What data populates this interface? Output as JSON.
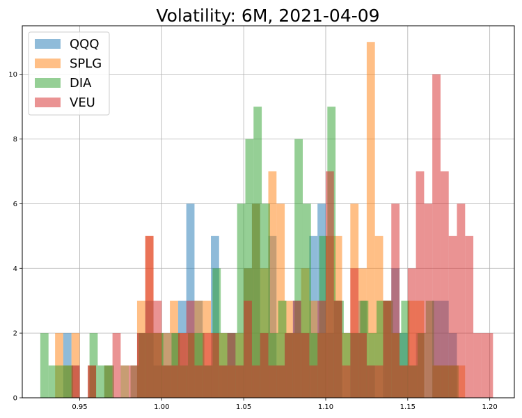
{
  "chart_data": {
    "type": "bar",
    "title": "Volatility: 6M, 2021-04-09",
    "xlabel": "",
    "ylabel": "",
    "xlim": [
      0.915,
      1.215
    ],
    "ylim": [
      0,
      11.5
    ],
    "x_ticks": [
      "0.95",
      "1.00",
      "1.05",
      "1.10",
      "1.15",
      "1.20"
    ],
    "x_tick_values": [
      0.95,
      1.0,
      1.05,
      1.1,
      1.15,
      1.2
    ],
    "y_ticks": [
      "0",
      "2",
      "4",
      "6",
      "8",
      "10"
    ],
    "y_tick_values": [
      0,
      2,
      4,
      6,
      8,
      10
    ],
    "grid": true,
    "legend_position": "top-left",
    "histogram": "overlaid, 50 bins per series, alpha 0.5",
    "series": [
      {
        "name": "QQQ",
        "color": "#1f77b4",
        "bin_width": 0.005,
        "bins": [
          [
            0.94,
            0.945,
            2
          ],
          [
            0.945,
            0.95,
            1
          ],
          [
            0.955,
            0.96,
            1
          ],
          [
            0.965,
            0.97,
            1
          ],
          [
            0.975,
            0.98,
            1
          ],
          [
            0.985,
            0.99,
            2
          ],
          [
            0.99,
            0.995,
            3
          ],
          [
            0.995,
            1.0,
            1
          ],
          [
            1.0,
            1.005,
            2
          ],
          [
            1.005,
            1.01,
            2
          ],
          [
            1.01,
            1.015,
            3
          ],
          [
            1.015,
            1.02,
            6
          ],
          [
            1.02,
            1.025,
            3
          ],
          [
            1.025,
            1.03,
            1
          ],
          [
            1.03,
            1.035,
            5
          ],
          [
            1.035,
            1.04,
            1
          ],
          [
            1.04,
            1.045,
            2
          ],
          [
            1.045,
            1.05,
            1
          ],
          [
            1.05,
            1.055,
            4
          ],
          [
            1.055,
            1.06,
            6
          ],
          [
            1.06,
            1.065,
            2
          ],
          [
            1.065,
            1.07,
            5
          ],
          [
            1.07,
            1.075,
            1
          ],
          [
            1.075,
            1.08,
            2
          ],
          [
            1.08,
            1.085,
            3
          ],
          [
            1.085,
            1.09,
            2
          ],
          [
            1.09,
            1.095,
            5
          ],
          [
            1.095,
            1.1,
            6
          ],
          [
            1.1,
            1.105,
            2
          ],
          [
            1.105,
            1.11,
            3
          ],
          [
            1.115,
            1.12,
            2
          ],
          [
            1.12,
            1.125,
            3
          ],
          [
            1.125,
            1.13,
            1
          ],
          [
            1.135,
            1.14,
            3
          ],
          [
            1.14,
            1.145,
            4
          ],
          [
            1.145,
            1.15,
            2
          ],
          [
            1.15,
            1.155,
            1
          ],
          [
            1.155,
            1.16,
            2
          ],
          [
            1.165,
            1.17,
            3
          ],
          [
            1.17,
            1.175,
            3
          ],
          [
            1.175,
            1.18,
            2
          ]
        ]
      },
      {
        "name": "SPLG",
        "color": "#ff7f0e",
        "bin_width": 0.005,
        "bins": [
          [
            0.935,
            0.94,
            2
          ],
          [
            0.94,
            0.945,
            1
          ],
          [
            0.945,
            0.95,
            2
          ],
          [
            0.955,
            0.96,
            1
          ],
          [
            0.965,
            0.97,
            1
          ],
          [
            0.975,
            0.98,
            1
          ],
          [
            0.985,
            0.99,
            3
          ],
          [
            0.99,
            0.995,
            5
          ],
          [
            0.995,
            1.0,
            2
          ],
          [
            1.0,
            1.005,
            2
          ],
          [
            1.005,
            1.01,
            3
          ],
          [
            1.01,
            1.015,
            2
          ],
          [
            1.015,
            1.02,
            2
          ],
          [
            1.02,
            1.025,
            3
          ],
          [
            1.025,
            1.03,
            3
          ],
          [
            1.03,
            1.035,
            2
          ],
          [
            1.035,
            1.04,
            2
          ],
          [
            1.04,
            1.045,
            1
          ],
          [
            1.045,
            1.05,
            2
          ],
          [
            1.05,
            1.055,
            4
          ],
          [
            1.055,
            1.06,
            6
          ],
          [
            1.06,
            1.065,
            4
          ],
          [
            1.065,
            1.07,
            7
          ],
          [
            1.07,
            1.075,
            6
          ],
          [
            1.075,
            1.08,
            3
          ],
          [
            1.08,
            1.085,
            2
          ],
          [
            1.085,
            1.09,
            4
          ],
          [
            1.09,
            1.095,
            3
          ],
          [
            1.095,
            1.1,
            2
          ],
          [
            1.1,
            1.105,
            5
          ],
          [
            1.105,
            1.11,
            5
          ],
          [
            1.11,
            1.115,
            2
          ],
          [
            1.115,
            1.12,
            6
          ],
          [
            1.12,
            1.125,
            4
          ],
          [
            1.125,
            1.13,
            11
          ],
          [
            1.13,
            1.135,
            5
          ],
          [
            1.135,
            1.14,
            3
          ],
          [
            1.14,
            1.145,
            2
          ],
          [
            1.145,
            1.15,
            1
          ],
          [
            1.15,
            1.155,
            3
          ],
          [
            1.155,
            1.16,
            3
          ],
          [
            1.165,
            1.17,
            1
          ],
          [
            1.17,
            1.175,
            1
          ],
          [
            1.175,
            1.18,
            1
          ],
          [
            1.18,
            1.185,
            1
          ]
        ]
      },
      {
        "name": "DIA",
        "color": "#2ca02c",
        "bin_width": 0.005,
        "bins": [
          [
            0.926,
            0.931,
            2
          ],
          [
            0.931,
            0.936,
            1
          ],
          [
            0.936,
            0.941,
            1
          ],
          [
            0.941,
            0.946,
            1
          ],
          [
            0.956,
            0.961,
            2
          ],
          [
            0.961,
            0.966,
            1
          ],
          [
            0.966,
            0.971,
            1
          ],
          [
            0.981,
            0.986,
            1
          ],
          [
            0.986,
            0.991,
            2
          ],
          [
            0.991,
            0.996,
            2
          ],
          [
            0.996,
            1.001,
            2
          ],
          [
            1.001,
            1.006,
            1
          ],
          [
            1.006,
            1.011,
            2
          ],
          [
            1.011,
            1.016,
            1
          ],
          [
            1.016,
            1.021,
            2
          ],
          [
            1.021,
            1.026,
            2
          ],
          [
            1.026,
            1.031,
            1
          ],
          [
            1.031,
            1.036,
            4
          ],
          [
            1.036,
            1.041,
            2
          ],
          [
            1.041,
            1.046,
            2
          ],
          [
            1.046,
            1.051,
            6
          ],
          [
            1.051,
            1.056,
            8
          ],
          [
            1.056,
            1.061,
            9
          ],
          [
            1.061,
            1.066,
            6
          ],
          [
            1.066,
            1.071,
            2
          ],
          [
            1.071,
            1.076,
            3
          ],
          [
            1.076,
            1.081,
            2
          ],
          [
            1.081,
            1.086,
            8
          ],
          [
            1.086,
            1.091,
            6
          ],
          [
            1.091,
            1.096,
            2
          ],
          [
            1.096,
            1.101,
            5
          ],
          [
            1.101,
            1.106,
            9
          ],
          [
            1.106,
            1.111,
            3
          ],
          [
            1.111,
            1.116,
            2
          ],
          [
            1.116,
            1.121,
            2
          ],
          [
            1.121,
            1.126,
            3
          ],
          [
            1.126,
            1.131,
            2
          ],
          [
            1.131,
            1.136,
            3
          ],
          [
            1.136,
            1.141,
            3
          ],
          [
            1.141,
            1.146,
            2
          ],
          [
            1.146,
            1.151,
            3
          ],
          [
            1.151,
            1.156,
            1
          ],
          [
            1.156,
            1.161,
            2
          ],
          [
            1.161,
            1.166,
            3
          ],
          [
            1.166,
            1.171,
            1
          ],
          [
            1.171,
            1.176,
            1
          ],
          [
            1.176,
            1.181,
            1
          ]
        ]
      },
      {
        "name": "VEU",
        "color": "#d62728",
        "bin_width": 0.005,
        "bins": [
          [
            0.945,
            0.95,
            1
          ],
          [
            0.955,
            0.96,
            1
          ],
          [
            0.97,
            0.975,
            2
          ],
          [
            0.98,
            0.985,
            1
          ],
          [
            0.985,
            0.99,
            2
          ],
          [
            0.99,
            0.995,
            5
          ],
          [
            0.995,
            1.0,
            3
          ],
          [
            1.0,
            1.005,
            1
          ],
          [
            1.005,
            1.01,
            1
          ],
          [
            1.01,
            1.015,
            2
          ],
          [
            1.015,
            1.02,
            3
          ],
          [
            1.02,
            1.025,
            1
          ],
          [
            1.025,
            1.03,
            2
          ],
          [
            1.03,
            1.035,
            2
          ],
          [
            1.035,
            1.04,
            1
          ],
          [
            1.04,
            1.045,
            2
          ],
          [
            1.045,
            1.05,
            1
          ],
          [
            1.05,
            1.055,
            3
          ],
          [
            1.055,
            1.06,
            1
          ],
          [
            1.06,
            1.065,
            2
          ],
          [
            1.065,
            1.07,
            1
          ],
          [
            1.07,
            1.075,
            1
          ],
          [
            1.075,
            1.08,
            2
          ],
          [
            1.08,
            1.085,
            3
          ],
          [
            1.085,
            1.09,
            2
          ],
          [
            1.09,
            1.095,
            1
          ],
          [
            1.095,
            1.1,
            3
          ],
          [
            1.1,
            1.105,
            7
          ],
          [
            1.105,
            1.11,
            3
          ],
          [
            1.11,
            1.115,
            1
          ],
          [
            1.115,
            1.12,
            4
          ],
          [
            1.12,
            1.125,
            2
          ],
          [
            1.125,
            1.13,
            1
          ],
          [
            1.13,
            1.135,
            1
          ],
          [
            1.135,
            1.14,
            3
          ],
          [
            1.14,
            1.145,
            6
          ],
          [
            1.145,
            1.15,
            1
          ],
          [
            1.15,
            1.155,
            4
          ],
          [
            1.155,
            1.16,
            7
          ],
          [
            1.16,
            1.165,
            6
          ],
          [
            1.165,
            1.17,
            10
          ],
          [
            1.17,
            1.175,
            7
          ],
          [
            1.175,
            1.18,
            5
          ],
          [
            1.18,
            1.185,
            6
          ],
          [
            1.185,
            1.19,
            5
          ],
          [
            1.19,
            1.195,
            2
          ],
          [
            1.195,
            1.2,
            2
          ],
          [
            1.2,
            1.202,
            2
          ]
        ]
      }
    ]
  }
}
